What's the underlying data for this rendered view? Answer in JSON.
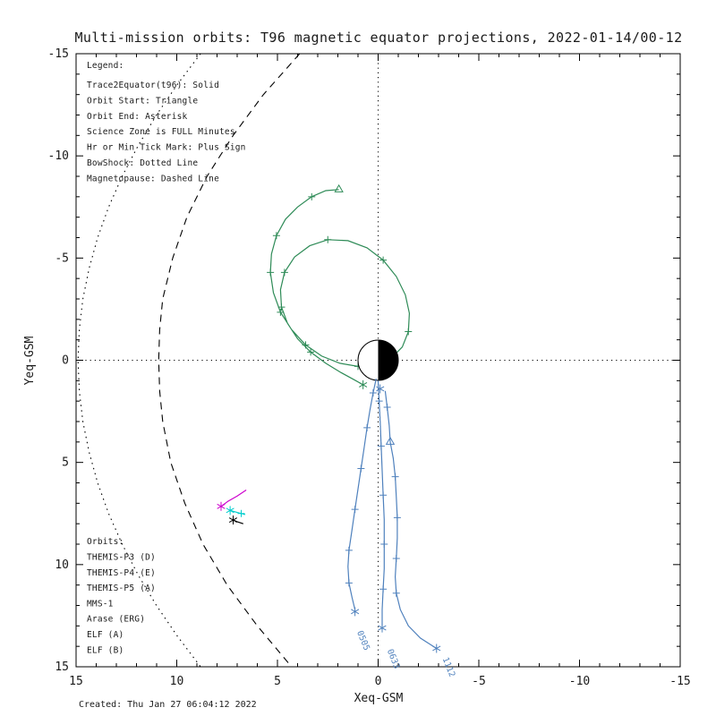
{
  "chart_data": {
    "type": "line",
    "title": "Multi-mission orbits: T96 magnetic equator projections, 2022-01-14/00-12",
    "xlabel": "Xeq-GSM",
    "ylabel": "Yeq-GSM",
    "xlim": [
      15,
      -15
    ],
    "ylim": [
      -15,
      15
    ],
    "xticks": [
      15,
      10,
      5,
      0,
      -5,
      -10,
      -15
    ],
    "yticks": [
      -15,
      -10,
      -5,
      0,
      5,
      10,
      15
    ],
    "grid": "dotted crosshair through origin",
    "legend_position": "top-left inside plot",
    "earth": {
      "center": [
        0,
        0
      ],
      "radius": 1,
      "dayside": "white (sunward +X, plotted left)",
      "nightside": "black (-X tail, plotted right)"
    },
    "boundaries": [
      {
        "name": "bow-shock",
        "label": "BowShock",
        "style": "dotted",
        "color": "#000000",
        "points": [
          [
            8.82,
            -15
          ],
          [
            9.97,
            -13.5
          ],
          [
            11.01,
            -12
          ],
          [
            11.92,
            -10.5
          ],
          [
            12.71,
            -9
          ],
          [
            13.38,
            -7.5
          ],
          [
            13.93,
            -6
          ],
          [
            14.35,
            -4.5
          ],
          [
            14.66,
            -3
          ],
          [
            14.84,
            -1.5
          ],
          [
            14.9,
            0
          ],
          [
            14.84,
            1.5
          ],
          [
            14.66,
            3
          ],
          [
            14.35,
            4.5
          ],
          [
            13.93,
            6
          ],
          [
            13.38,
            7.5
          ],
          [
            12.71,
            9
          ],
          [
            11.92,
            10.5
          ],
          [
            11.01,
            12
          ],
          [
            9.97,
            13.5
          ],
          [
            8.82,
            15
          ]
        ]
      },
      {
        "name": "magnetopause",
        "label": "Magnetopause",
        "style": "dashed",
        "color": "#000000",
        "points": [
          [
            3.9,
            -15
          ],
          [
            5.7,
            -13
          ],
          [
            7.2,
            -11
          ],
          [
            8.5,
            -9
          ],
          [
            9.5,
            -7
          ],
          [
            10.2,
            -5
          ],
          [
            10.7,
            -3
          ],
          [
            10.85,
            -1.5
          ],
          [
            10.9,
            0
          ],
          [
            10.85,
            1.5
          ],
          [
            10.7,
            3
          ],
          [
            10.3,
            5
          ],
          [
            9.6,
            7
          ],
          [
            8.7,
            9
          ],
          [
            7.5,
            11
          ],
          [
            6.0,
            13
          ],
          [
            4.3,
            15
          ]
        ]
      }
    ],
    "series": [
      {
        "id": "arase-erg",
        "name": "Arase (ERG)",
        "color": "#2e8b57",
        "layer": 0,
        "points": [
          [
            1.95,
            -8.35
          ],
          [
            2.6,
            -8.3
          ],
          [
            3.3,
            -8.0
          ],
          [
            4.0,
            -7.5
          ],
          [
            4.6,
            -6.9
          ],
          [
            5.05,
            -6.1
          ],
          [
            5.3,
            -5.2
          ],
          [
            5.35,
            -4.3
          ],
          [
            5.2,
            -3.3
          ],
          [
            4.85,
            -2.35
          ],
          [
            4.3,
            -1.5
          ],
          [
            3.6,
            -0.75
          ],
          [
            2.8,
            -0.2
          ],
          [
            1.9,
            0.15
          ],
          [
            1.0,
            0.3
          ],
          [
            0.1,
            0.2
          ],
          [
            -0.65,
            -0.1
          ],
          [
            -1.2,
            -0.65
          ],
          [
            -1.5,
            -1.4
          ],
          [
            -1.55,
            -2.3
          ],
          [
            -1.35,
            -3.2
          ],
          [
            -0.9,
            -4.1
          ],
          [
            -0.25,
            -4.9
          ],
          [
            0.55,
            -5.5
          ],
          [
            1.5,
            -5.85
          ],
          [
            2.5,
            -5.9
          ],
          [
            3.4,
            -5.6
          ],
          [
            4.15,
            -5.05
          ],
          [
            4.65,
            -4.3
          ],
          [
            4.85,
            -3.45
          ],
          [
            4.8,
            -2.6
          ],
          [
            4.5,
            -1.8
          ],
          [
            4.0,
            -1.05
          ],
          [
            3.35,
            -0.4
          ],
          [
            2.6,
            0.15
          ],
          [
            1.85,
            0.6
          ],
          [
            1.2,
            0.95
          ],
          [
            0.75,
            1.2
          ]
        ],
        "ticks": [
          [
            3.3,
            -8.0
          ],
          [
            5.05,
            -6.1
          ],
          [
            5.35,
            -4.3
          ],
          [
            4.85,
            -2.35
          ],
          [
            3.6,
            -0.75
          ],
          [
            1.0,
            0.3
          ],
          [
            -1.5,
            -1.4
          ],
          [
            -0.25,
            -4.9
          ],
          [
            2.5,
            -5.9
          ],
          [
            4.65,
            -4.3
          ],
          [
            4.8,
            -2.6
          ],
          [
            3.35,
            -0.4
          ]
        ],
        "markers": [
          {
            "type": "triangle",
            "at": [
              1.95,
              -8.35
            ]
          },
          {
            "type": "asterisk",
            "at": [
              0.75,
              1.2
            ]
          }
        ]
      },
      {
        "id": "elf-a-0505",
        "name": "ELF (A) pass 0505",
        "color": "#4f81bd",
        "layer": 1,
        "points": [
          [
            0.1,
            0.9
          ],
          [
            0.25,
            1.6
          ],
          [
            0.4,
            2.4
          ],
          [
            0.55,
            3.3
          ],
          [
            0.7,
            4.3
          ],
          [
            0.85,
            5.3
          ],
          [
            1.0,
            6.3
          ],
          [
            1.15,
            7.3
          ],
          [
            1.3,
            8.3
          ],
          [
            1.45,
            9.3
          ],
          [
            1.5,
            10.1
          ],
          [
            1.45,
            10.9
          ],
          [
            1.3,
            11.6
          ],
          [
            1.15,
            12.2
          ]
        ],
        "ticks": [
          [
            0.25,
            1.6
          ],
          [
            0.55,
            3.3
          ],
          [
            0.85,
            5.3
          ],
          [
            1.15,
            7.3
          ],
          [
            1.45,
            9.3
          ],
          [
            1.45,
            10.9
          ]
        ],
        "markers": [
          {
            "type": "asterisk",
            "at": [
              1.15,
              12.3
            ]
          }
        ]
      },
      {
        "id": "elf-a-0633",
        "name": "ELF (A) pass 0633",
        "color": "#4f81bd",
        "layer": 1,
        "points": [
          [
            0.0,
            1.0
          ],
          [
            -0.05,
            2.0
          ],
          [
            -0.1,
            3.0
          ],
          [
            -0.15,
            4.2
          ],
          [
            -0.2,
            5.4
          ],
          [
            -0.25,
            6.6
          ],
          [
            -0.3,
            7.8
          ],
          [
            -0.3,
            9.0
          ],
          [
            -0.3,
            10.2
          ],
          [
            -0.25,
            11.2
          ],
          [
            -0.2,
            12.2
          ],
          [
            -0.2,
            13.0
          ]
        ],
        "ticks": [
          [
            -0.05,
            2.0
          ],
          [
            -0.15,
            4.2
          ],
          [
            -0.25,
            6.6
          ],
          [
            -0.3,
            9.0
          ],
          [
            -0.25,
            11.2
          ]
        ],
        "markers": [
          {
            "type": "asterisk",
            "at": [
              -0.2,
              13.1
            ]
          },
          {
            "type": "asterisk",
            "at": [
              -0.1,
              1.4
            ]
          }
        ]
      },
      {
        "id": "elf-a-1112",
        "name": "ELF (A) pass 1112",
        "color": "#4f81bd",
        "layer": 1,
        "points": [
          [
            -0.35,
            1.5
          ],
          [
            -0.45,
            2.3
          ],
          [
            -0.55,
            3.2
          ],
          [
            -0.6,
            4.0
          ],
          [
            -0.75,
            4.8
          ],
          [
            -0.85,
            5.7
          ],
          [
            -0.9,
            6.7
          ],
          [
            -0.95,
            7.7
          ],
          [
            -0.95,
            8.7
          ],
          [
            -0.9,
            9.7
          ],
          [
            -0.85,
            10.6
          ],
          [
            -0.9,
            11.4
          ],
          [
            -1.1,
            12.2
          ],
          [
            -1.5,
            13.0
          ],
          [
            -2.1,
            13.6
          ],
          [
            -2.9,
            14.1
          ]
        ],
        "ticks": [
          [
            -0.45,
            2.3
          ],
          [
            -0.85,
            5.7
          ],
          [
            -0.95,
            7.7
          ],
          [
            -0.9,
            9.7
          ],
          [
            -0.9,
            11.4
          ]
        ],
        "markers": [
          {
            "type": "triangle",
            "at": [
              -0.6,
              4.0
            ]
          },
          {
            "type": "asterisk",
            "at": [
              -2.9,
              14.1
            ]
          }
        ]
      },
      {
        "id": "themis-p5",
        "name": "THEMIS-P5 (A)",
        "color": "#cd00cd",
        "layer": 1,
        "points": [
          [
            6.55,
            6.35
          ],
          [
            7.0,
            6.65
          ],
          [
            7.45,
            6.9
          ],
          [
            7.8,
            7.15
          ]
        ],
        "ticks": [],
        "markers": [
          {
            "type": "asterisk",
            "at": [
              7.8,
              7.15
            ]
          }
        ]
      },
      {
        "id": "themis-p3",
        "name": "THEMIS-P3 (D)",
        "color": "#00cdcd",
        "layer": 1,
        "points": [
          [
            6.6,
            7.55
          ],
          [
            7.0,
            7.45
          ],
          [
            7.35,
            7.35
          ]
        ],
        "ticks": [
          [
            6.8,
            7.5
          ]
        ],
        "markers": [
          {
            "type": "asterisk",
            "at": [
              7.35,
              7.35
            ]
          }
        ]
      },
      {
        "id": "mms-1",
        "name": "MMS-1",
        "color": "#000000",
        "layer": 1,
        "points": [
          [
            6.7,
            8.0
          ],
          [
            7.0,
            7.9
          ],
          [
            7.2,
            7.82
          ]
        ],
        "ticks": [],
        "markers": [
          {
            "type": "asterisk",
            "at": [
              7.2,
              7.82
            ]
          }
        ]
      }
    ],
    "time_labels": [
      {
        "text": "0505",
        "x": 1.05,
        "y": 13.3,
        "rotate": 68,
        "color": "#4f81bd"
      },
      {
        "text": "0633",
        "x": -0.45,
        "y": 14.2,
        "rotate": 68,
        "color": "#4f81bd"
      },
      {
        "text": "1112",
        "x": -3.2,
        "y": 14.6,
        "rotate": 68,
        "color": "#4f81bd"
      }
    ]
  },
  "legend": {
    "heading": "Legend:",
    "lines": [
      "Trace2Equator(t96): Solid",
      "Orbit Start: Triangle",
      "Orbit End: Asterisk",
      "Science Zone is FULL Minutes",
      "Hr or Min Tick Mark: Plus Sign",
      "BowShock: Dotted Line",
      "Magnetopause: Dashed Line"
    ]
  },
  "orbit_legend": {
    "heading": "Orbits:",
    "items": [
      {
        "label": "THEMIS-P3 (D)",
        "color": "#00cdcd"
      },
      {
        "label": "THEMIS-P4 (E)",
        "color": "#1414cd"
      },
      {
        "label": "THEMIS-P5 (A)",
        "color": "#cd00cd"
      },
      {
        "label": "MMS-1",
        "color": "#000000"
      },
      {
        "label": "Arase (ERG)",
        "color": "#2e8b57"
      },
      {
        "label": "ELF (A)",
        "color": "#4f81bd"
      },
      {
        "label": "ELF (B)",
        "color": "#cd0000"
      }
    ]
  },
  "footer": {
    "created": "Created: Thu Jan 27 06:04:12 2022"
  }
}
